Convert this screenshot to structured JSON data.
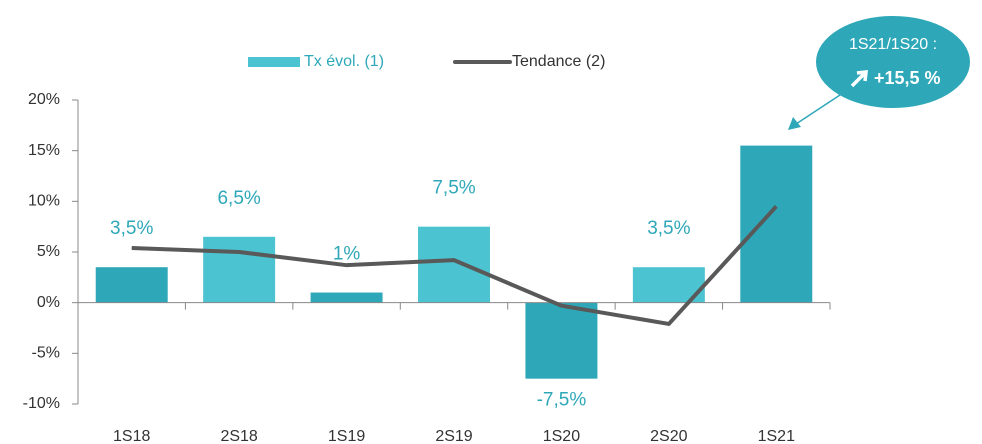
{
  "chart_data": {
    "type": "bar_line",
    "categories": [
      "1S18",
      "2S18",
      "1S19",
      "2S19",
      "1S20",
      "2S20",
      "1S21"
    ],
    "series": [
      {
        "name": "Tx évol. (1)",
        "type": "bar",
        "color": "#4cc3d1",
        "colors": [
          "#2ea8b8",
          "#4cc3d1",
          "#2ea8b8",
          "#4cc3d1",
          "#2ea8b8",
          "#4cc3d1",
          "#2ea8b8"
        ],
        "values": [
          3.5,
          6.5,
          1,
          7.5,
          -7.5,
          3.5,
          15.5
        ],
        "value_labels": [
          "3,5%",
          "6,5%",
          "1%",
          "7,5%",
          "-7,5%",
          "3,5%",
          null
        ]
      },
      {
        "name": "Tendance (2)",
        "type": "line",
        "color": "#595959",
        "values": [
          5.4,
          5.0,
          3.7,
          4.2,
          -0.3,
          -2.1,
          9.5
        ]
      }
    ],
    "ylim": [
      -10,
      20
    ],
    "yticks": [
      {
        "value": -10,
        "label": "-10%"
      },
      {
        "value": -5,
        "label": "-5%"
      },
      {
        "value": 0,
        "label": "0%"
      },
      {
        "value": 5,
        "label": "5%"
      },
      {
        "value": 10,
        "label": "10%"
      },
      {
        "value": 15,
        "label": "15%"
      },
      {
        "value": 20,
        "label": "20%"
      }
    ],
    "annotation": {
      "title": "1S21/1S20 :",
      "text": "+15,5 %",
      "color": "#2ea8b8"
    }
  }
}
